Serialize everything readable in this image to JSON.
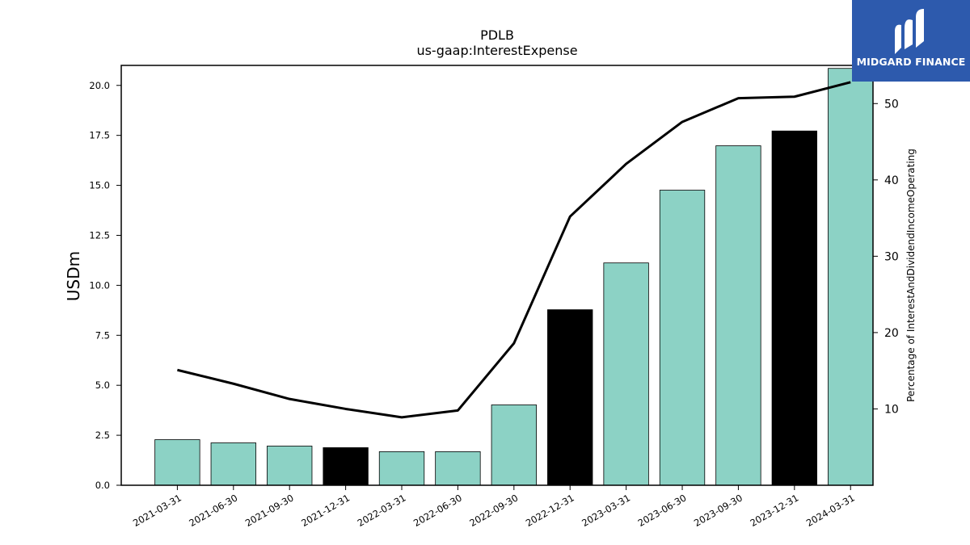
{
  "chart_data": {
    "type": "bar",
    "title": "PDLB",
    "subtitle": "us-gaap:InterestExpense",
    "ylabel": "USDm",
    "y2label": "Percentage of InterestAndDividendIncomeOperating",
    "categories": [
      "2021-03-31",
      "2021-06-30",
      "2021-09-30",
      "2021-12-31",
      "2022-03-31",
      "2022-06-30",
      "2022-09-30",
      "2022-12-31",
      "2023-03-31",
      "2023-06-30",
      "2023-09-30",
      "2023-12-31",
      "2024-03-31"
    ],
    "values": [
      2.28,
      2.12,
      1.96,
      1.88,
      1.68,
      1.68,
      4.02,
      8.78,
      11.12,
      14.76,
      16.98,
      17.72,
      20.85
    ],
    "bar_colors": [
      "#8cd2c5",
      "#8cd2c5",
      "#8cd2c5",
      "#000000",
      "#8cd2c5",
      "#8cd2c5",
      "#8cd2c5",
      "#000000",
      "#8cd2c5",
      "#8cd2c5",
      "#8cd2c5",
      "#000000",
      "#8cd2c5"
    ],
    "line_values": [
      15.1,
      13.3,
      11.3,
      10.0,
      8.9,
      9.8,
      18.6,
      35.2,
      42.1,
      47.6,
      50.7,
      50.9,
      52.8
    ],
    "ylim": [
      0,
      21.0
    ],
    "yticks": [
      "0.0",
      "2.5",
      "5.0",
      "7.5",
      "10.0",
      "12.5",
      "15.0",
      "17.5",
      "20.0"
    ],
    "y2lim": [
      0,
      55.0
    ],
    "y2ticks": [
      "10",
      "20",
      "30",
      "40",
      "50"
    ],
    "grid": false,
    "line_color": "#000000"
  },
  "logo": {
    "text": "MIDGARD FINANCE",
    "color": "#2d5aad"
  }
}
